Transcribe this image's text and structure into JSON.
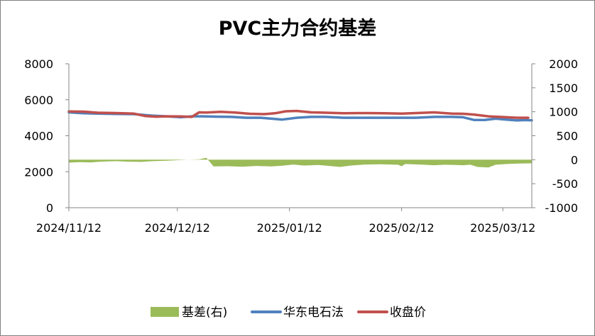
{
  "chart_data": {
    "type": "line",
    "title": "PVC主力合约基差",
    "x_tick_labels": [
      "2024/11/12",
      "2024/12/12",
      "2025/01/12",
      "2025/02/12",
      "2025/03/12"
    ],
    "x_range": [
      "2024/11/12",
      "2025/03/20"
    ],
    "y_left": {
      "range": [
        0,
        8000
      ],
      "ticks": [
        "0",
        "2000",
        "4000",
        "6000",
        "8000"
      ]
    },
    "y_right": {
      "range": [
        -1000,
        2000
      ],
      "ticks": [
        "-1000",
        "-500",
        "0",
        "500",
        "1000",
        "1500",
        "2000"
      ]
    },
    "grid": false,
    "legend_position": "bottom",
    "series": [
      {
        "name": "基差(右)",
        "type": "area",
        "axis": "right",
        "color": "#9bbb59",
        "points": [
          [
            "2024/11/12",
            -60
          ],
          [
            "2024/11/15",
            -50
          ],
          [
            "2024/11/18",
            -55
          ],
          [
            "2024/11/21",
            -40
          ],
          [
            "2024/11/25",
            -30
          ],
          [
            "2024/11/28",
            -40
          ],
          [
            "2024/12/02",
            -45
          ],
          [
            "2024/12/05",
            -30
          ],
          [
            "2024/12/09",
            -20
          ],
          [
            "2024/12/12",
            -10
          ],
          [
            "2024/12/15",
            0
          ],
          [
            "2024/12/18",
            10
          ],
          [
            "2024/12/20",
            40
          ],
          [
            "2024/12/22",
            -140
          ],
          [
            "2024/12/26",
            -135
          ],
          [
            "2024/12/30",
            -145
          ],
          [
            "2025/01/03",
            -130
          ],
          [
            "2025/01/07",
            -140
          ],
          [
            "2025/01/10",
            -125
          ],
          [
            "2025/01/13",
            -100
          ],
          [
            "2025/01/16",
            -120
          ],
          [
            "2025/01/20",
            -110
          ],
          [
            "2025/01/23",
            -130
          ],
          [
            "2025/01/26",
            -150
          ],
          [
            "2025/01/29",
            -120
          ],
          [
            "2025/02/02",
            -100
          ],
          [
            "2025/02/06",
            -95
          ],
          [
            "2025/02/09",
            -100
          ],
          [
            "2025/02/11",
            -105
          ],
          [
            "2025/02/12",
            -135
          ],
          [
            "2025/02/13",
            -90
          ],
          [
            "2025/02/17",
            -100
          ],
          [
            "2025/02/21",
            -115
          ],
          [
            "2025/02/24",
            -105
          ],
          [
            "2025/02/27",
            -110
          ],
          [
            "2025/03/01",
            -115
          ],
          [
            "2025/03/03",
            -105
          ],
          [
            "2025/03/05",
            -150
          ],
          [
            "2025/03/08",
            -160
          ],
          [
            "2025/03/10",
            -105
          ],
          [
            "2025/03/13",
            -90
          ],
          [
            "2025/03/16",
            -80
          ],
          [
            "2025/03/20",
            -75
          ]
        ]
      },
      {
        "name": "华东电石法",
        "type": "line",
        "axis": "left",
        "color": "#4f81bd",
        "points": [
          [
            "2024/11/12",
            5300
          ],
          [
            "2024/11/16",
            5250
          ],
          [
            "2024/11/20",
            5230
          ],
          [
            "2024/11/25",
            5210
          ],
          [
            "2024/11/30",
            5200
          ],
          [
            "2024/12/05",
            5120
          ],
          [
            "2024/12/09",
            5080
          ],
          [
            "2024/12/13",
            5030
          ],
          [
            "2024/12/16",
            5080
          ],
          [
            "2024/12/19",
            5080
          ],
          [
            "2024/12/23",
            5060
          ],
          [
            "2024/12/27",
            5050
          ],
          [
            "2024/12/31",
            5000
          ],
          [
            "2025/01/04",
            5000
          ],
          [
            "2025/01/07",
            4950
          ],
          [
            "2025/01/10",
            4900
          ],
          [
            "2025/01/14",
            5000
          ],
          [
            "2025/01/18",
            5050
          ],
          [
            "2025/01/22",
            5050
          ],
          [
            "2025/01/27",
            5000
          ],
          [
            "2025/02/02",
            5000
          ],
          [
            "2025/02/07",
            5000
          ],
          [
            "2025/02/12",
            5000
          ],
          [
            "2025/02/16",
            5000
          ],
          [
            "2025/02/21",
            5050
          ],
          [
            "2025/02/26",
            5050
          ],
          [
            "2025/03/01",
            5030
          ],
          [
            "2025/03/04",
            4880
          ],
          [
            "2025/03/07",
            4880
          ],
          [
            "2025/03/10",
            4950
          ],
          [
            "2025/03/13",
            4900
          ],
          [
            "2025/03/16",
            4850
          ],
          [
            "2025/03/18",
            4870
          ],
          [
            "2025/03/20",
            4860
          ]
        ]
      },
      {
        "name": "收盘价",
        "type": "line",
        "axis": "left",
        "color": "#c0504d",
        "points": [
          [
            "2024/11/12",
            5350
          ],
          [
            "2024/11/16",
            5340
          ],
          [
            "2024/11/20",
            5280
          ],
          [
            "2024/11/25",
            5260
          ],
          [
            "2024/11/30",
            5230
          ],
          [
            "2024/12/03",
            5100
          ],
          [
            "2024/12/06",
            5060
          ],
          [
            "2024/12/09",
            5080
          ],
          [
            "2024/12/13",
            5070
          ],
          [
            "2024/12/16",
            5050
          ],
          [
            "2024/12/18",
            5300
          ],
          [
            "2024/12/20",
            5290
          ],
          [
            "2024/12/24",
            5330
          ],
          [
            "2024/12/28",
            5290
          ],
          [
            "2025/01/01",
            5220
          ],
          [
            "2025/01/05",
            5200
          ],
          [
            "2025/01/08",
            5250
          ],
          [
            "2025/01/11",
            5360
          ],
          [
            "2025/01/14",
            5380
          ],
          [
            "2025/01/18",
            5300
          ],
          [
            "2025/01/22",
            5280
          ],
          [
            "2025/01/27",
            5250
          ],
          [
            "2025/02/02",
            5260
          ],
          [
            "2025/02/07",
            5250
          ],
          [
            "2025/02/12",
            5230
          ],
          [
            "2025/02/16",
            5260
          ],
          [
            "2025/02/21",
            5300
          ],
          [
            "2025/02/26",
            5230
          ],
          [
            "2025/03/01",
            5220
          ],
          [
            "2025/03/04",
            5180
          ],
          [
            "2025/03/08",
            5080
          ],
          [
            "2025/03/12",
            5040
          ],
          [
            "2025/03/16",
            5000
          ],
          [
            "2025/03/19",
            5000
          ]
        ]
      }
    ]
  }
}
